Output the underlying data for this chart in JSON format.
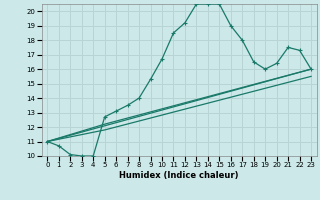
{
  "xlabel": "Humidex (Indice chaleur)",
  "bg_color": "#cce8e8",
  "line_color": "#1a7a6a",
  "grid_color": "#b8d4d4",
  "xlim": [
    -0.5,
    23.5
  ],
  "ylim": [
    10,
    20.5
  ],
  "xticks": [
    0,
    1,
    2,
    3,
    4,
    5,
    6,
    7,
    8,
    9,
    10,
    11,
    12,
    13,
    14,
    15,
    16,
    17,
    18,
    19,
    20,
    21,
    22,
    23
  ],
  "yticks": [
    10,
    11,
    12,
    13,
    14,
    15,
    16,
    17,
    18,
    19,
    20
  ],
  "main_x": [
    0,
    1,
    2,
    3,
    4,
    5,
    6,
    7,
    8,
    9,
    10,
    11,
    12,
    13,
    14,
    15,
    16,
    17,
    18,
    19,
    20,
    21,
    22,
    23
  ],
  "main_y": [
    11,
    10.7,
    10.1,
    10.0,
    10.0,
    12.7,
    13.1,
    13.5,
    14.0,
    15.3,
    16.7,
    18.5,
    19.2,
    20.5,
    20.5,
    20.5,
    19.0,
    18.0,
    16.5,
    16.0,
    16.4,
    17.5,
    17.3,
    16.0
  ],
  "trend1_x": [
    0,
    23
  ],
  "trend1_y": [
    11.0,
    16.0
  ],
  "trend2_x": [
    0,
    5,
    23
  ],
  "trend2_y": [
    11.0,
    11.8,
    15.5
  ],
  "trend3_x": [
    0,
    5,
    23
  ],
  "trend3_y": [
    11.0,
    12.2,
    16.0
  ]
}
